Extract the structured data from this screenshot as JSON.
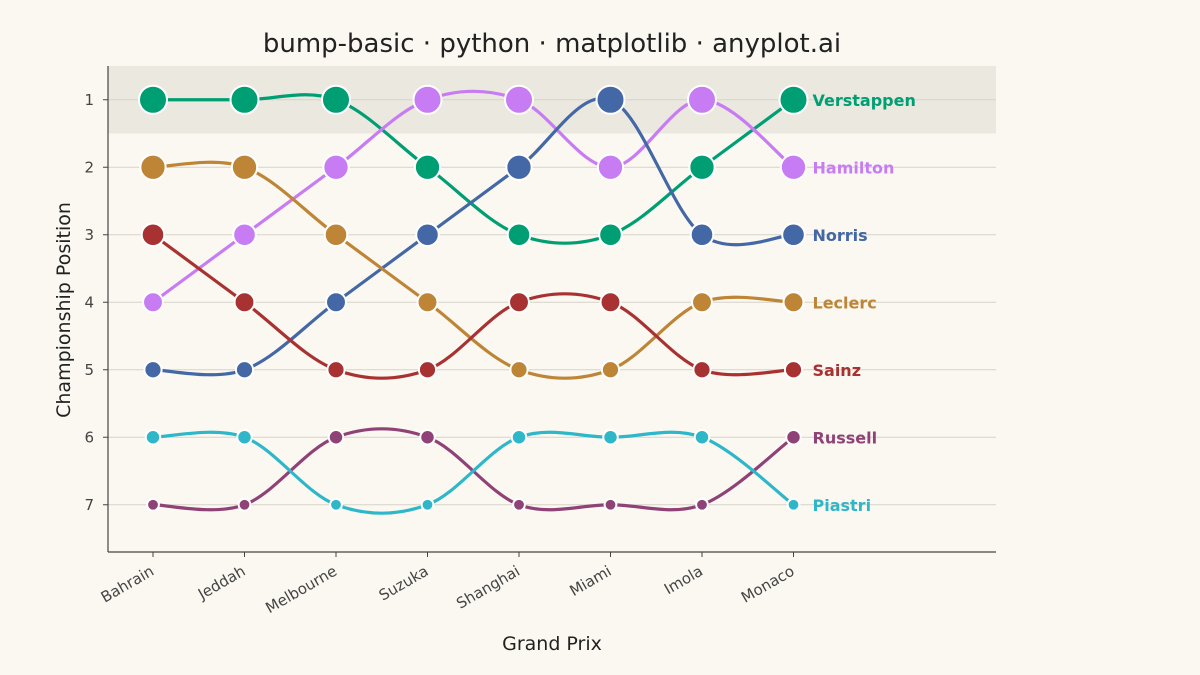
{
  "chart_data": {
    "type": "line",
    "subtype": "bump",
    "title": "bump-basic · python · matplotlib · anyplot.ai",
    "xlabel": "Grand Prix",
    "ylabel": "Championship Position",
    "categories": [
      "Bahrain",
      "Jeddah",
      "Melbourne",
      "Suzuka",
      "Shanghai",
      "Miami",
      "Imola",
      "Monaco"
    ],
    "y_ticks": [
      1,
      2,
      3,
      4,
      5,
      6,
      7
    ],
    "y_inverted": true,
    "ylim": [
      7.7,
      0.5
    ],
    "highlight_band": [
      0.5,
      1.5
    ],
    "grid": "horizontal",
    "legend": "direct labels at right end of lines",
    "series": [
      {
        "name": "Verstappen",
        "color": "#009E73",
        "values": [
          1,
          1,
          1,
          2,
          3,
          3,
          2,
          1
        ]
      },
      {
        "name": "Hamilton",
        "color": "#C77CF4",
        "values": [
          4,
          3,
          2,
          1,
          1,
          2,
          1,
          2
        ]
      },
      {
        "name": "Norris",
        "color": "#4467A5",
        "values": [
          5,
          5,
          4,
          3,
          2,
          1,
          3,
          3
        ]
      },
      {
        "name": "Leclerc",
        "color": "#BE8537",
        "values": [
          2,
          2,
          3,
          4,
          5,
          5,
          4,
          4
        ]
      },
      {
        "name": "Sainz",
        "color": "#A83232",
        "values": [
          3,
          4,
          5,
          5,
          4,
          4,
          5,
          5
        ]
      },
      {
        "name": "Russell",
        "color": "#8E4275",
        "values": [
          7,
          7,
          6,
          6,
          7,
          7,
          7,
          6
        ]
      },
      {
        "name": "Piastri",
        "color": "#2EB7C9",
        "values": [
          6,
          6,
          7,
          7,
          6,
          6,
          6,
          7
        ]
      }
    ]
  }
}
